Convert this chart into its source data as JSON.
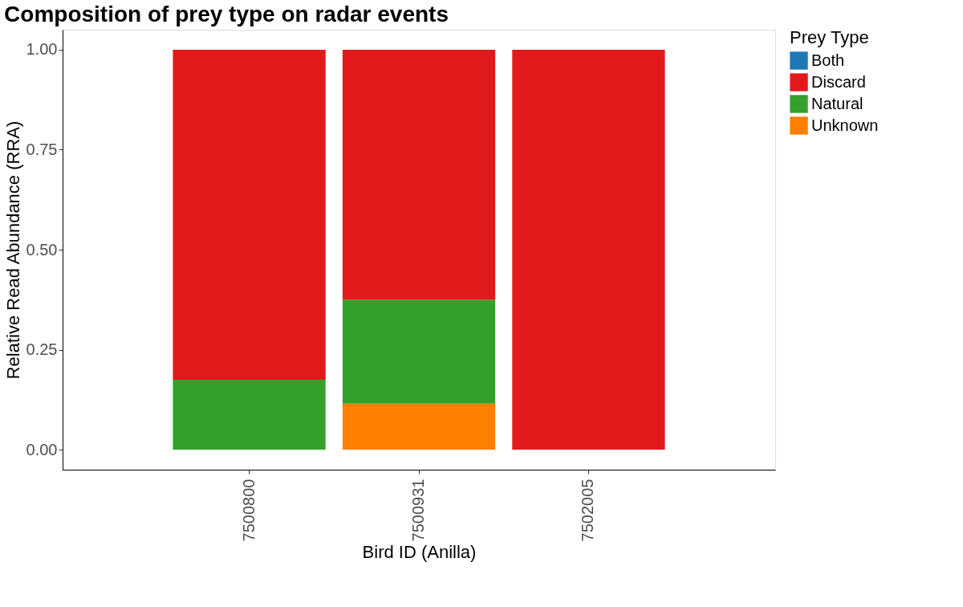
{
  "chart_data": {
    "type": "bar",
    "title": "Composition of prey type on radar events",
    "xlabel": "Bird ID (Anilla)",
    "ylabel": "Relative Read Abundance (RRA)",
    "legend_title": "Prey Type",
    "categories": [
      "7500800",
      "7500931",
      "7502005"
    ],
    "stacked": true,
    "series": [
      {
        "name": "Unknown",
        "color": "#ff7f00",
        "values": [
          0,
          0.115,
          0
        ]
      },
      {
        "name": "Natural",
        "color": "#33a02c",
        "values": [
          0.175,
          0.26,
          0
        ]
      },
      {
        "name": "Discard",
        "color": "#e31a1c",
        "values": [
          0.825,
          0.625,
          1.0
        ]
      },
      {
        "name": "Both",
        "color": "#1f78b4",
        "values": [
          0,
          0,
          0
        ]
      }
    ],
    "ylim": [
      -0.05,
      1.05
    ],
    "yticks": [
      {
        "value": 0,
        "label": "0.00"
      },
      {
        "value": 0.25,
        "label": "0.25"
      },
      {
        "value": 0.5,
        "label": "0.50"
      },
      {
        "value": 0.75,
        "label": "0.75"
      },
      {
        "value": 1,
        "label": "1.00"
      }
    ],
    "grid": false,
    "legend": "right"
  }
}
